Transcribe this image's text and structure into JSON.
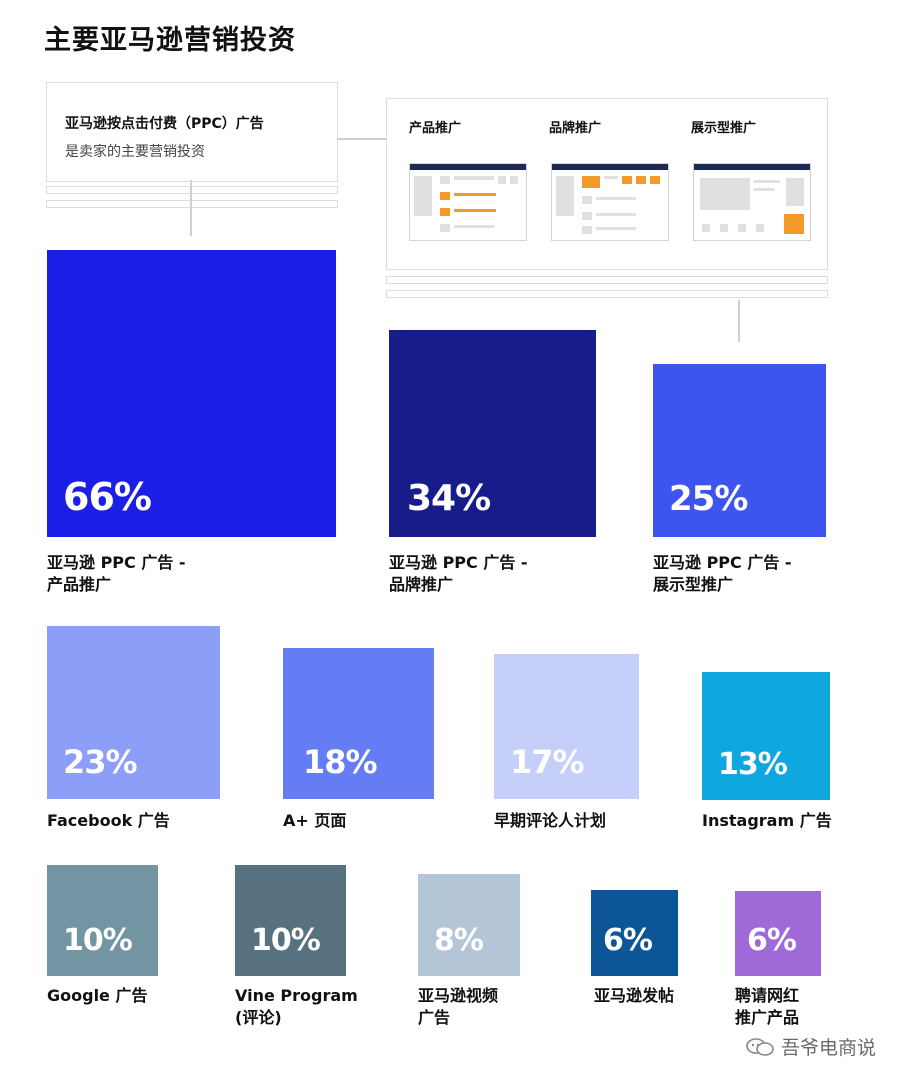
{
  "title": "主要亚马逊营销投资",
  "ppc_box": {
    "line1": "亚马逊按点击付费（PPC）广告",
    "line2": "是卖家的主要营销投资"
  },
  "ad_types": [
    "产品推广",
    "品牌推广",
    "展示型推广"
  ],
  "watermark": "吾爷电商说",
  "colors": {
    "accent_royal": "#1a1ee6",
    "accent_navy": "#161c8a",
    "accent_blue": "#3d54ee"
  },
  "chart_data": {
    "type": "treemap",
    "title": "主要亚马逊营销投资",
    "items": [
      {
        "label": "亚马逊 PPC 广告 -\n产品推广",
        "value": 66,
        "display": "66%",
        "color": "#1a1ee6"
      },
      {
        "label": "亚马逊 PPC 广告 -\n品牌推广",
        "value": 34,
        "display": "34%",
        "color": "#161c8a"
      },
      {
        "label": "亚马逊 PPC 广告 -\n展示型推广",
        "value": 25,
        "display": "25%",
        "color": "#3d54ee"
      },
      {
        "label": "Facebook 广告",
        "value": 23,
        "display": "23%",
        "color": "#8c9ef7"
      },
      {
        "label": "A+ 页面",
        "value": 18,
        "display": "18%",
        "color": "#647cf4"
      },
      {
        "label": "早期评论人计划",
        "value": 17,
        "display": "17%",
        "color": "#c5cff9"
      },
      {
        "label": "Instagram 广告",
        "value": 13,
        "display": "13%",
        "color": "#0fa7df"
      },
      {
        "label": "Google 广告",
        "value": 10,
        "display": "10%",
        "color": "#7395a3"
      },
      {
        "label": "Vine Program\n(评论)",
        "value": 10,
        "display": "10%",
        "color": "#587180"
      },
      {
        "label": "亚马逊视频\n广告",
        "value": 8,
        "display": "8%",
        "color": "#b5c5d8"
      },
      {
        "label": "亚马逊发帖",
        "value": 6,
        "display": "6%",
        "color": "#0c5698"
      },
      {
        "label": "聘请网红\n推广产品",
        "value": 6,
        "display": "6%",
        "color": "#9f6ad7"
      }
    ]
  }
}
